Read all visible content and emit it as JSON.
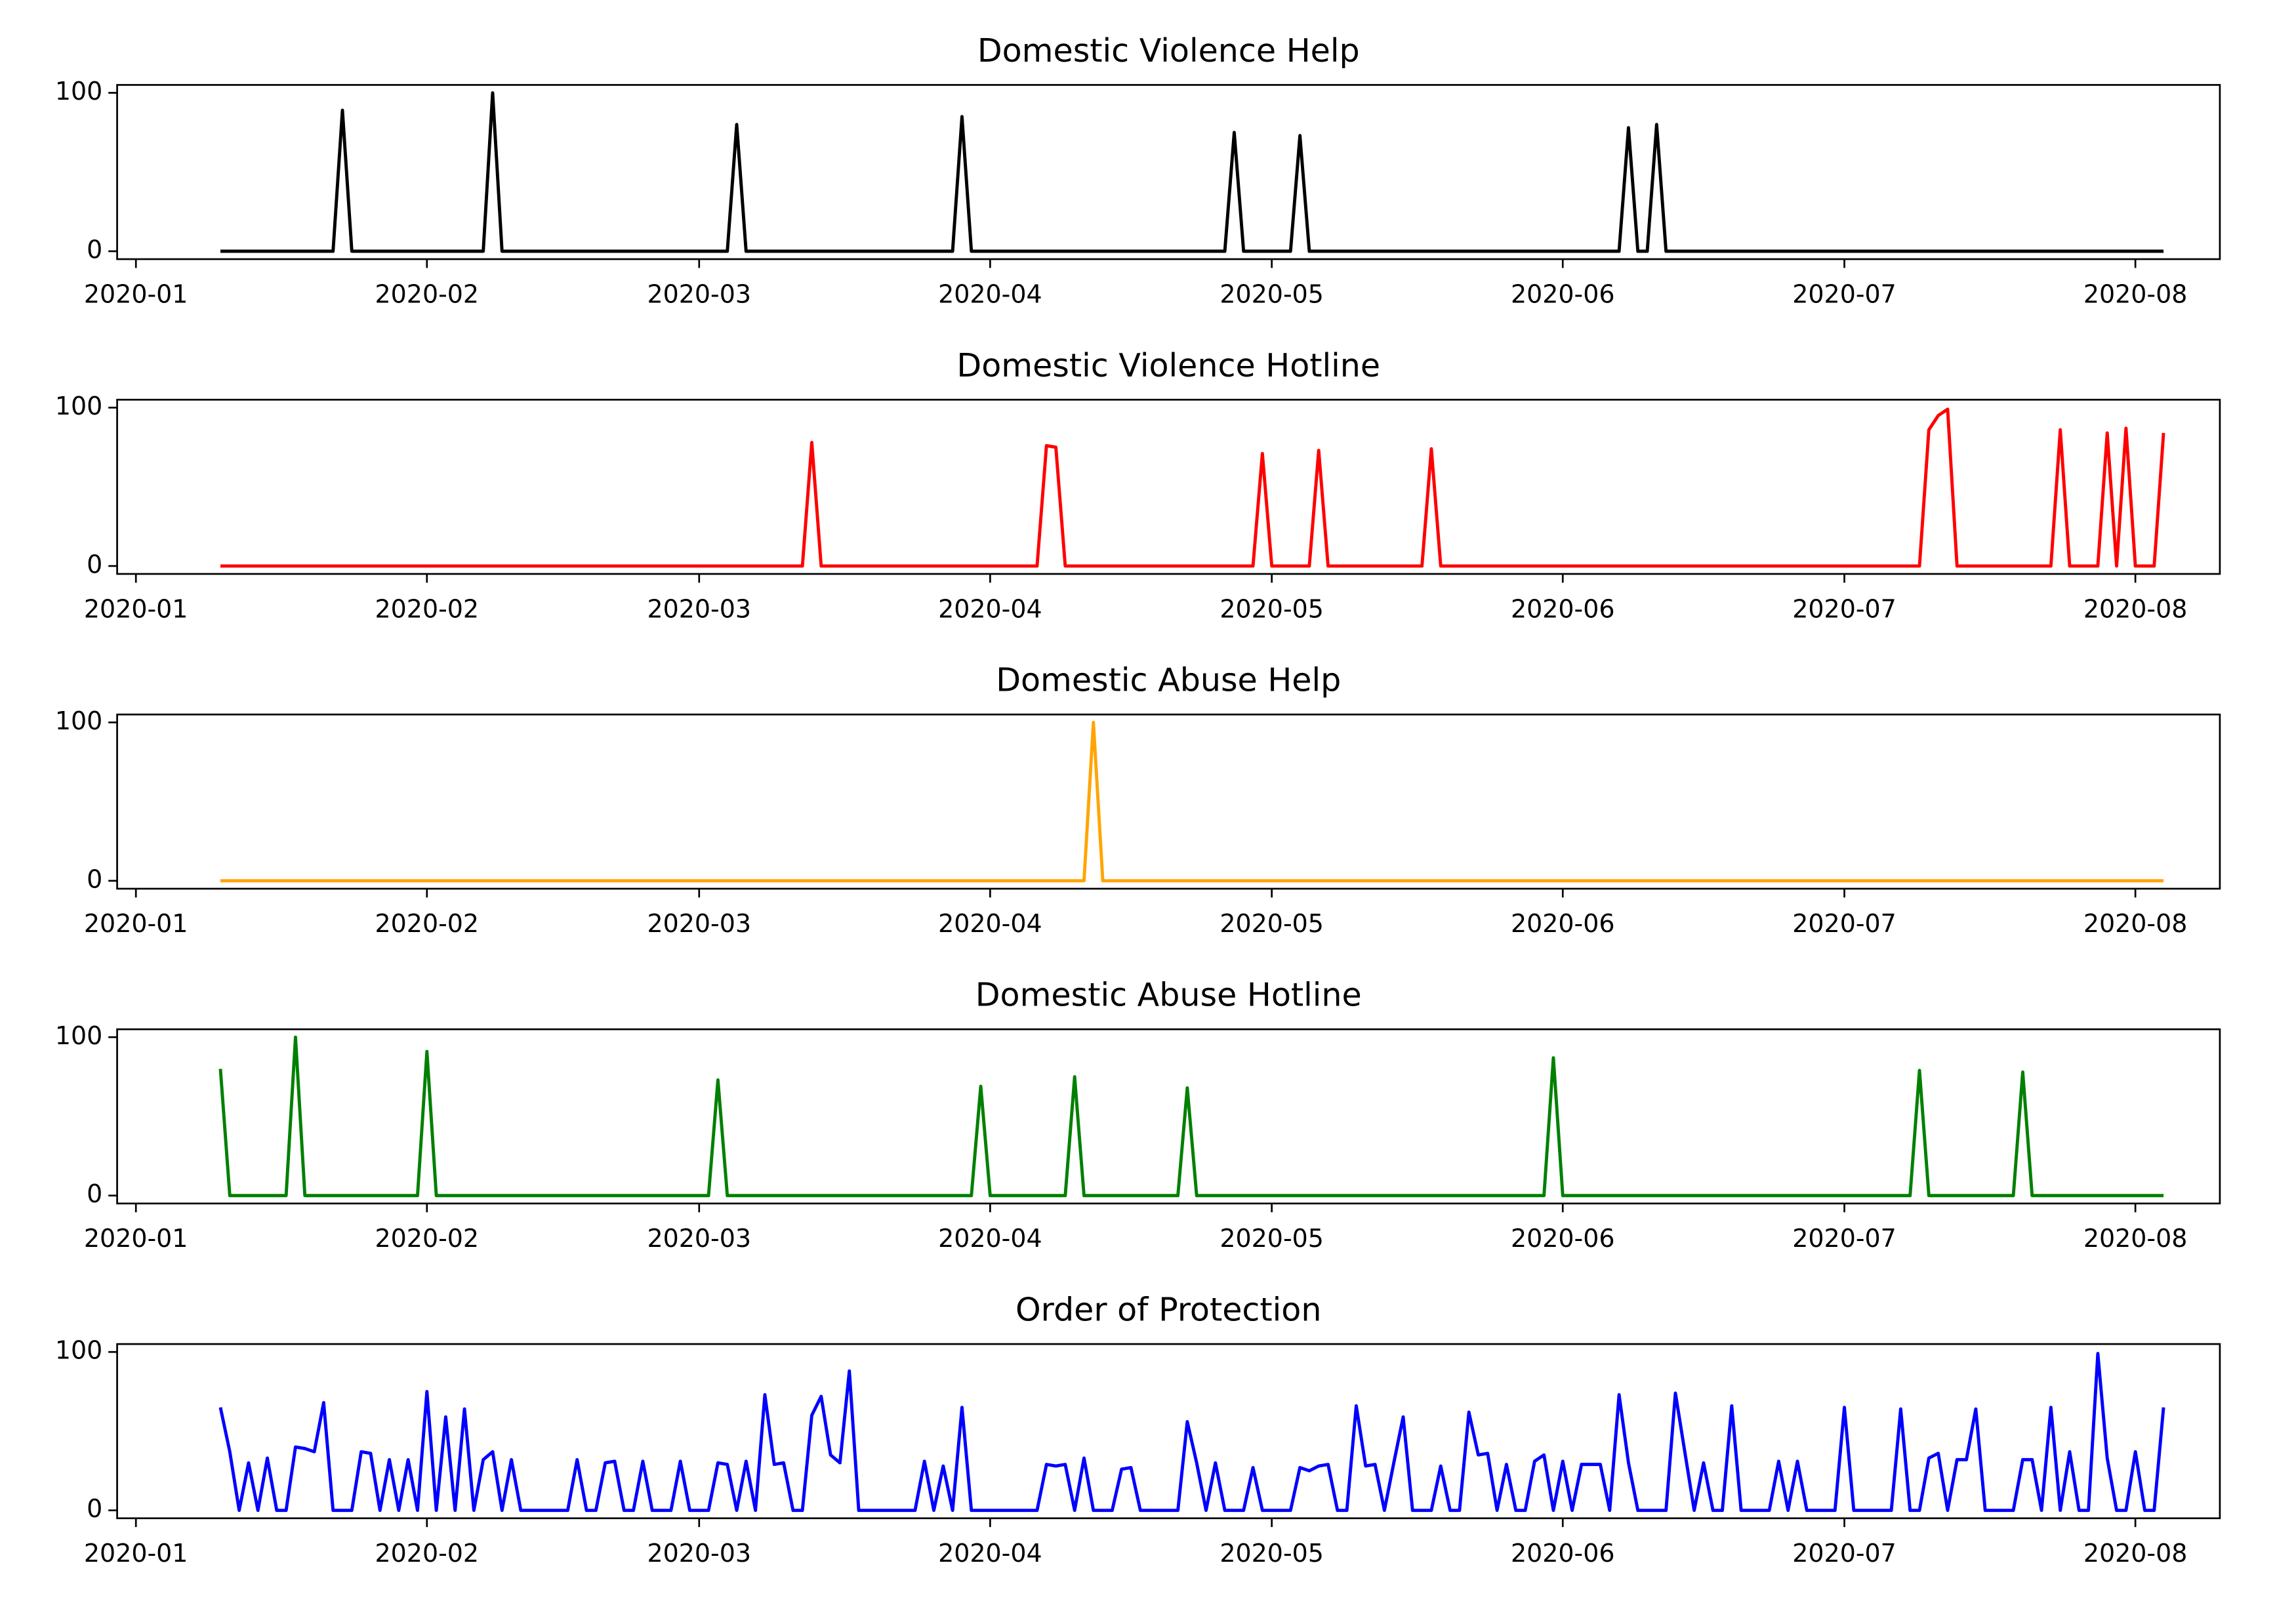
{
  "chart_data": {
    "type": "line",
    "layout": "stacked",
    "x": [
      "2020-01-10",
      "2020-01-11",
      "2020-01-12",
      "2020-01-13",
      "2020-01-14",
      "2020-01-15",
      "2020-01-16",
      "2020-01-17",
      "2020-01-18",
      "2020-01-19",
      "2020-01-20",
      "2020-01-21",
      "2020-01-22",
      "2020-01-23",
      "2020-01-24",
      "2020-01-25",
      "2020-01-26",
      "2020-01-27",
      "2020-01-28",
      "2020-01-29",
      "2020-01-30",
      "2020-01-31",
      "2020-02-01",
      "2020-02-02",
      "2020-02-03",
      "2020-02-04",
      "2020-02-05",
      "2020-02-06",
      "2020-02-07",
      "2020-02-08",
      "2020-02-09",
      "2020-02-10",
      "2020-02-11",
      "2020-02-12",
      "2020-02-13",
      "2020-02-14",
      "2020-02-15",
      "2020-02-16",
      "2020-02-17",
      "2020-02-18",
      "2020-02-19",
      "2020-02-20",
      "2020-02-21",
      "2020-02-22",
      "2020-02-23",
      "2020-02-24",
      "2020-02-25",
      "2020-02-26",
      "2020-02-27",
      "2020-02-28",
      "2020-02-29",
      "2020-03-01",
      "2020-03-02",
      "2020-03-03",
      "2020-03-04",
      "2020-03-05",
      "2020-03-06",
      "2020-03-07",
      "2020-03-08",
      "2020-03-09",
      "2020-03-10",
      "2020-03-11",
      "2020-03-12",
      "2020-03-13",
      "2020-03-14",
      "2020-03-15",
      "2020-03-16",
      "2020-03-17",
      "2020-03-18",
      "2020-03-19",
      "2020-03-20",
      "2020-03-21",
      "2020-03-22",
      "2020-03-23",
      "2020-03-24",
      "2020-03-25",
      "2020-03-26",
      "2020-03-27",
      "2020-03-28",
      "2020-03-29",
      "2020-03-30",
      "2020-03-31",
      "2020-04-01",
      "2020-04-02",
      "2020-04-03",
      "2020-04-04",
      "2020-04-05",
      "2020-04-06",
      "2020-04-07",
      "2020-04-08",
      "2020-04-09",
      "2020-04-10",
      "2020-04-11",
      "2020-04-12",
      "2020-04-13",
      "2020-04-14",
      "2020-04-15",
      "2020-04-16",
      "2020-04-17",
      "2020-04-18",
      "2020-04-19",
      "2020-04-20",
      "2020-04-21",
      "2020-04-22",
      "2020-04-23",
      "2020-04-24",
      "2020-04-25",
      "2020-04-26",
      "2020-04-27",
      "2020-04-28",
      "2020-04-29",
      "2020-04-30",
      "2020-05-01",
      "2020-05-02",
      "2020-05-03",
      "2020-05-04",
      "2020-05-05",
      "2020-05-06",
      "2020-05-07",
      "2020-05-08",
      "2020-05-09",
      "2020-05-10",
      "2020-05-11",
      "2020-05-12",
      "2020-05-13",
      "2020-05-14",
      "2020-05-15",
      "2020-05-16",
      "2020-05-17",
      "2020-05-18",
      "2020-05-19",
      "2020-05-20",
      "2020-05-21",
      "2020-05-22",
      "2020-05-23",
      "2020-05-24",
      "2020-05-25",
      "2020-05-26",
      "2020-05-27",
      "2020-05-28",
      "2020-05-29",
      "2020-05-30",
      "2020-05-31",
      "2020-06-01",
      "2020-06-02",
      "2020-06-03",
      "2020-06-04",
      "2020-06-05",
      "2020-06-06",
      "2020-06-07",
      "2020-06-08",
      "2020-06-09",
      "2020-06-10",
      "2020-06-11",
      "2020-06-12",
      "2020-06-13",
      "2020-06-14",
      "2020-06-15",
      "2020-06-16",
      "2020-06-17",
      "2020-06-18",
      "2020-06-19",
      "2020-06-20",
      "2020-06-21",
      "2020-06-22",
      "2020-06-23",
      "2020-06-24",
      "2020-06-25",
      "2020-06-26",
      "2020-06-27",
      "2020-06-28",
      "2020-06-29",
      "2020-06-30",
      "2020-07-01",
      "2020-07-02",
      "2020-07-03",
      "2020-07-04",
      "2020-07-05",
      "2020-07-06",
      "2020-07-07",
      "2020-07-08",
      "2020-07-09",
      "2020-07-10",
      "2020-07-11",
      "2020-07-12",
      "2020-07-13",
      "2020-07-14",
      "2020-07-15",
      "2020-07-16",
      "2020-07-17",
      "2020-07-18",
      "2020-07-19",
      "2020-07-20",
      "2020-07-21",
      "2020-07-22",
      "2020-07-23",
      "2020-07-24",
      "2020-07-25",
      "2020-07-26",
      "2020-07-27",
      "2020-07-28",
      "2020-07-29",
      "2020-07-30",
      "2020-07-31",
      "2020-08-01",
      "2020-08-02",
      "2020-08-03",
      "2020-08-04"
    ],
    "series": [
      {
        "name": "Domestic Violence Help",
        "color": "#000000",
        "values": [
          0,
          0,
          0,
          0,
          0,
          0,
          0,
          0,
          0,
          0,
          0,
          0,
          0,
          89,
          0,
          0,
          0,
          0,
          0,
          0,
          0,
          0,
          0,
          0,
          0,
          0,
          0,
          0,
          0,
          100,
          0,
          0,
          0,
          0,
          0,
          0,
          0,
          0,
          0,
          0,
          0,
          0,
          0,
          0,
          0,
          0,
          0,
          0,
          0,
          0,
          0,
          0,
          0,
          0,
          0,
          80,
          0,
          0,
          0,
          0,
          0,
          0,
          0,
          0,
          0,
          0,
          0,
          0,
          0,
          0,
          0,
          0,
          0,
          0,
          0,
          0,
          0,
          0,
          0,
          85,
          0,
          0,
          0,
          0,
          0,
          0,
          0,
          0,
          0,
          0,
          0,
          0,
          0,
          0,
          0,
          0,
          0,
          0,
          0,
          0,
          0,
          0,
          0,
          0,
          0,
          0,
          0,
          0,
          75,
          0,
          0,
          0,
          0,
          0,
          0,
          73,
          0,
          0,
          0,
          0,
          0,
          0,
          0,
          0,
          0,
          0,
          0,
          0,
          0,
          0,
          0,
          0,
          0,
          0,
          0,
          0,
          0,
          0,
          0,
          0,
          0,
          0,
          0,
          0,
          0,
          0,
          0,
          0,
          0,
          0,
          78,
          0,
          0,
          80,
          0,
          0,
          0,
          0,
          0,
          0,
          0,
          0,
          0,
          0,
          0,
          0,
          0,
          0,
          0,
          0,
          0,
          0,
          0,
          0,
          0,
          0,
          0,
          0,
          0,
          0,
          0,
          0,
          0,
          0,
          0,
          0,
          0,
          0,
          0,
          0,
          0,
          0,
          0,
          0,
          0,
          0,
          0,
          0,
          0,
          0,
          0,
          0,
          0,
          0,
          0,
          0,
          0,
          0
        ]
      },
      {
        "name": "Domestic Violence Hotline",
        "color": "#ff0000",
        "values": [
          0,
          0,
          0,
          0,
          0,
          0,
          0,
          0,
          0,
          0,
          0,
          0,
          0,
          0,
          0,
          0,
          0,
          0,
          0,
          0,
          0,
          0,
          0,
          0,
          0,
          0,
          0,
          0,
          0,
          0,
          0,
          0,
          0,
          0,
          0,
          0,
          0,
          0,
          0,
          0,
          0,
          0,
          0,
          0,
          0,
          0,
          0,
          0,
          0,
          0,
          0,
          0,
          0,
          0,
          0,
          0,
          0,
          0,
          0,
          0,
          0,
          0,
          0,
          78,
          0,
          0,
          0,
          0,
          0,
          0,
          0,
          0,
          0,
          0,
          0,
          0,
          0,
          0,
          0,
          0,
          0,
          0,
          0,
          0,
          0,
          0,
          0,
          0,
          76,
          75,
          0,
          0,
          0,
          0,
          0,
          0,
          0,
          0,
          0,
          0,
          0,
          0,
          0,
          0,
          0,
          0,
          0,
          0,
          0,
          0,
          0,
          71,
          0,
          0,
          0,
          0,
          0,
          73,
          0,
          0,
          0,
          0,
          0,
          0,
          0,
          0,
          0,
          0,
          0,
          74,
          0,
          0,
          0,
          0,
          0,
          0,
          0,
          0,
          0,
          0,
          0,
          0,
          0,
          0,
          0,
          0,
          0,
          0,
          0,
          0,
          0,
          0,
          0,
          0,
          0,
          0,
          0,
          0,
          0,
          0,
          0,
          0,
          0,
          0,
          0,
          0,
          0,
          0,
          0,
          0,
          0,
          0,
          0,
          0,
          0,
          0,
          0,
          0,
          0,
          0,
          0,
          0,
          86,
          95,
          99,
          0,
          0,
          0,
          0,
          0,
          0,
          0,
          0,
          0,
          0,
          0,
          86,
          0,
          0,
          0,
          0,
          84,
          0,
          87,
          0,
          0,
          0,
          84
        ]
      },
      {
        "name": "Domestic Abuse Help",
        "color": "#ffa500",
        "values": [
          0,
          0,
          0,
          0,
          0,
          0,
          0,
          0,
          0,
          0,
          0,
          0,
          0,
          0,
          0,
          0,
          0,
          0,
          0,
          0,
          0,
          0,
          0,
          0,
          0,
          0,
          0,
          0,
          0,
          0,
          0,
          0,
          0,
          0,
          0,
          0,
          0,
          0,
          0,
          0,
          0,
          0,
          0,
          0,
          0,
          0,
          0,
          0,
          0,
          0,
          0,
          0,
          0,
          0,
          0,
          0,
          0,
          0,
          0,
          0,
          0,
          0,
          0,
          0,
          0,
          0,
          0,
          0,
          0,
          0,
          0,
          0,
          0,
          0,
          0,
          0,
          0,
          0,
          0,
          0,
          0,
          0,
          0,
          0,
          0,
          0,
          0,
          0,
          0,
          0,
          0,
          0,
          0,
          100,
          0,
          0,
          0,
          0,
          0,
          0,
          0,
          0,
          0,
          0,
          0,
          0,
          0,
          0,
          0,
          0,
          0,
          0,
          0,
          0,
          0,
          0,
          0,
          0,
          0,
          0,
          0,
          0,
          0,
          0,
          0,
          0,
          0,
          0,
          0,
          0,
          0,
          0,
          0,
          0,
          0,
          0,
          0,
          0,
          0,
          0,
          0,
          0,
          0,
          0,
          0,
          0,
          0,
          0,
          0,
          0,
          0,
          0,
          0,
          0,
          0,
          0,
          0,
          0,
          0,
          0,
          0,
          0,
          0,
          0,
          0,
          0,
          0,
          0,
          0,
          0,
          0,
          0,
          0,
          0,
          0,
          0,
          0,
          0,
          0,
          0,
          0,
          0,
          0,
          0,
          0,
          0,
          0,
          0,
          0,
          0,
          0,
          0,
          0,
          0,
          0,
          0,
          0,
          0,
          0,
          0,
          0,
          0,
          0,
          0,
          0,
          0,
          0,
          0
        ]
      },
      {
        "name": "Domestic Abuse Hotline",
        "color": "#008000",
        "values": [
          80,
          0,
          0,
          0,
          0,
          0,
          0,
          0,
          100,
          0,
          0,
          0,
          0,
          0,
          0,
          0,
          0,
          0,
          0,
          0,
          0,
          0,
          91,
          0,
          0,
          0,
          0,
          0,
          0,
          0,
          0,
          0,
          0,
          0,
          0,
          0,
          0,
          0,
          0,
          0,
          0,
          0,
          0,
          0,
          0,
          0,
          0,
          0,
          0,
          0,
          0,
          0,
          0,
          73,
          0,
          0,
          0,
          0,
          0,
          0,
          0,
          0,
          0,
          0,
          0,
          0,
          0,
          0,
          0,
          0,
          0,
          0,
          0,
          0,
          0,
          0,
          0,
          0,
          0,
          0,
          0,
          69,
          0,
          0,
          0,
          0,
          0,
          0,
          0,
          0,
          0,
          75,
          0,
          0,
          0,
          0,
          0,
          0,
          0,
          0,
          0,
          0,
          0,
          68,
          0,
          0,
          0,
          0,
          0,
          0,
          0,
          0,
          0,
          0,
          0,
          0,
          0,
          0,
          0,
          0,
          0,
          0,
          0,
          0,
          0,
          0,
          0,
          0,
          0,
          0,
          0,
          0,
          0,
          0,
          0,
          0,
          0,
          0,
          0,
          0,
          0,
          0,
          87,
          0,
          0,
          0,
          0,
          0,
          0,
          0,
          0,
          0,
          0,
          0,
          0,
          0,
          0,
          0,
          0,
          0,
          0,
          0,
          0,
          0,
          0,
          0,
          0,
          0,
          0,
          0,
          0,
          0,
          0,
          0,
          0,
          0,
          0,
          0,
          0,
          0,
          0,
          79,
          0,
          0,
          0,
          0,
          0,
          0,
          0,
          0,
          0,
          0,
          78,
          0,
          0,
          0,
          0,
          0,
          0,
          0,
          0,
          0,
          0,
          0,
          0,
          0,
          0,
          0
        ]
      },
      {
        "name": "Order of Protection",
        "color": "#0000ff",
        "values": [
          65,
          37,
          0,
          30,
          0,
          33,
          0,
          0,
          40,
          39,
          37,
          68,
          0,
          0,
          0,
          37,
          36,
          0,
          32,
          0,
          32,
          0,
          75,
          0,
          59,
          0,
          64,
          0,
          32,
          37,
          0,
          32,
          0,
          0,
          0,
          0,
          0,
          0,
          32,
          0,
          0,
          30,
          31,
          0,
          0,
          31,
          0,
          0,
          0,
          31,
          0,
          0,
          0,
          30,
          29,
          0,
          31,
          0,
          73,
          29,
          30,
          0,
          0,
          60,
          72,
          35,
          30,
          88,
          0,
          0,
          0,
          0,
          0,
          0,
          0,
          31,
          0,
          28,
          0,
          65,
          0,
          0,
          0,
          0,
          0,
          0,
          0,
          0,
          29,
          28,
          29,
          0,
          33,
          0,
          0,
          0,
          26,
          27,
          0,
          0,
          0,
          0,
          0,
          56,
          30,
          0,
          30,
          0,
          0,
          0,
          27,
          0,
          0,
          0,
          0,
          27,
          25,
          28,
          29,
          0,
          0,
          66,
          28,
          29,
          0,
          30,
          59,
          0,
          0,
          0,
          28,
          0,
          0,
          62,
          35,
          36,
          0,
          29,
          0,
          0,
          31,
          35,
          0,
          31,
          0,
          29,
          29,
          29,
          0,
          73,
          30,
          0,
          0,
          0,
          0,
          74,
          37,
          0,
          30,
          0,
          0,
          66,
          0,
          0,
          0,
          0,
          31,
          0,
          31,
          0,
          0,
          0,
          0,
          65,
          0,
          0,
          0,
          0,
          0,
          64,
          0,
          0,
          33,
          36,
          0,
          32,
          32,
          64,
          0,
          0,
          0,
          0,
          32,
          32,
          0,
          65,
          0,
          37,
          0,
          0,
          99,
          33,
          0,
          0,
          37,
          0,
          0,
          65
        ]
      }
    ],
    "xlim": [
      "2019-12-30",
      "2020-08-10"
    ],
    "xticks": [
      {
        "value": "2020-01-01",
        "label": "2020-01"
      },
      {
        "value": "2020-02-01",
        "label": "2020-02"
      },
      {
        "value": "2020-03-01",
        "label": "2020-03"
      },
      {
        "value": "2020-04-01",
        "label": "2020-04"
      },
      {
        "value": "2020-05-01",
        "label": "2020-05"
      },
      {
        "value": "2020-06-01",
        "label": "2020-06"
      },
      {
        "value": "2020-07-01",
        "label": "2020-07"
      },
      {
        "value": "2020-08-01",
        "label": "2020-08"
      }
    ],
    "ylim": [
      -5,
      105
    ],
    "yticks": [
      0,
      100
    ]
  }
}
